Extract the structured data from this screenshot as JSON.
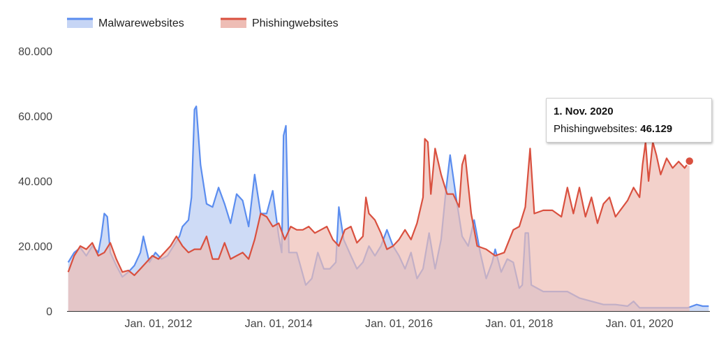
{
  "chart_data": {
    "type": "area",
    "y_ticks": [
      "0",
      "20.000",
      "40.000",
      "60.000",
      "80.000"
    ],
    "y_tick_values": [
      0,
      20000,
      40000,
      60000,
      80000
    ],
    "ylim": [
      0,
      80000
    ],
    "x_ticks": [
      {
        "label": "Jan. 01, 2012",
        "value": 2012.0
      },
      {
        "label": "Jan. 01, 2014",
        "value": 2014.0
      },
      {
        "label": "Jan. 01, 2016",
        "value": 2016.0
      },
      {
        "label": "Jan. 01, 2018",
        "value": 2018.0
      },
      {
        "label": "Jan. 01, 2020",
        "value": 2020.0
      }
    ],
    "xlim": [
      2010.48,
      2021.17
    ],
    "legend_position": "top-left",
    "series": [
      {
        "name": "Malwarewebsites",
        "color": "#5b8def",
        "fill": "#c6d5f5",
        "points": [
          [
            2010.5,
            15000
          ],
          [
            2010.6,
            18000
          ],
          [
            2010.7,
            19500
          ],
          [
            2010.8,
            17000
          ],
          [
            2010.9,
            20000
          ],
          [
            2011.0,
            18000
          ],
          [
            2011.05,
            23000
          ],
          [
            2011.1,
            30000
          ],
          [
            2011.15,
            29000
          ],
          [
            2011.2,
            18000
          ],
          [
            2011.3,
            14000
          ],
          [
            2011.4,
            10500
          ],
          [
            2011.5,
            12000
          ],
          [
            2011.6,
            14000
          ],
          [
            2011.7,
            18000
          ],
          [
            2011.75,
            23000
          ],
          [
            2011.85,
            15000
          ],
          [
            2011.95,
            18000
          ],
          [
            2012.05,
            16000
          ],
          [
            2012.15,
            17000
          ],
          [
            2012.25,
            20000
          ],
          [
            2012.35,
            23000
          ],
          [
            2012.4,
            26000
          ],
          [
            2012.5,
            28000
          ],
          [
            2012.55,
            35000
          ],
          [
            2012.6,
            62000
          ],
          [
            2012.63,
            63000
          ],
          [
            2012.7,
            45000
          ],
          [
            2012.8,
            33000
          ],
          [
            2012.9,
            32000
          ],
          [
            2013.0,
            38000
          ],
          [
            2013.1,
            33000
          ],
          [
            2013.2,
            27000
          ],
          [
            2013.3,
            36000
          ],
          [
            2013.4,
            34000
          ],
          [
            2013.5,
            26000
          ],
          [
            2013.6,
            42000
          ],
          [
            2013.7,
            30000
          ],
          [
            2013.8,
            30000
          ],
          [
            2013.9,
            37000
          ],
          [
            2014.0,
            23000
          ],
          [
            2014.05,
            18000
          ],
          [
            2014.08,
            54000
          ],
          [
            2014.12,
            57000
          ],
          [
            2014.17,
            18000
          ],
          [
            2014.3,
            18000
          ],
          [
            2014.45,
            8000
          ],
          [
            2014.55,
            10000
          ],
          [
            2014.65,
            18000
          ],
          [
            2014.75,
            13000
          ],
          [
            2014.85,
            13000
          ],
          [
            2014.95,
            15000
          ],
          [
            2015.0,
            32000
          ],
          [
            2015.08,
            22000
          ],
          [
            2015.2,
            17000
          ],
          [
            2015.3,
            13000
          ],
          [
            2015.4,
            15000
          ],
          [
            2015.5,
            20000
          ],
          [
            2015.6,
            17000
          ],
          [
            2015.7,
            20000
          ],
          [
            2015.8,
            25000
          ],
          [
            2015.9,
            20000
          ],
          [
            2016.0,
            17000
          ],
          [
            2016.1,
            13000
          ],
          [
            2016.2,
            18000
          ],
          [
            2016.3,
            10000
          ],
          [
            2016.4,
            13000
          ],
          [
            2016.5,
            24000
          ],
          [
            2016.6,
            13000
          ],
          [
            2016.7,
            22000
          ],
          [
            2016.78,
            37000
          ],
          [
            2016.85,
            48000
          ],
          [
            2016.95,
            35000
          ],
          [
            2017.05,
            23000
          ],
          [
            2017.15,
            20000
          ],
          [
            2017.25,
            28000
          ],
          [
            2017.35,
            18000
          ],
          [
            2017.45,
            10000
          ],
          [
            2017.55,
            15000
          ],
          [
            2017.6,
            19000
          ],
          [
            2017.7,
            12000
          ],
          [
            2017.8,
            16000
          ],
          [
            2017.9,
            15000
          ],
          [
            2018.0,
            7000
          ],
          [
            2018.05,
            8000
          ],
          [
            2018.1,
            24000
          ],
          [
            2018.15,
            24000
          ],
          [
            2018.2,
            8000
          ],
          [
            2018.4,
            6000
          ],
          [
            2018.6,
            6000
          ],
          [
            2018.8,
            6000
          ],
          [
            2019.0,
            4000
          ],
          [
            2019.2,
            3000
          ],
          [
            2019.4,
            2000
          ],
          [
            2019.6,
            2000
          ],
          [
            2019.8,
            1500
          ],
          [
            2019.9,
            3000
          ],
          [
            2020.0,
            1000
          ],
          [
            2020.2,
            1000
          ],
          [
            2020.5,
            1000
          ],
          [
            2020.8,
            1000
          ],
          [
            2020.95,
            2000
          ],
          [
            2021.05,
            1500
          ],
          [
            2021.15,
            1500
          ]
        ]
      },
      {
        "name": "Phishingwebsites",
        "color": "#d9503f",
        "fill": "#eebdb5",
        "points": [
          [
            2010.5,
            12000
          ],
          [
            2010.6,
            17000
          ],
          [
            2010.7,
            20000
          ],
          [
            2010.8,
            19000
          ],
          [
            2010.9,
            21000
          ],
          [
            2011.0,
            17000
          ],
          [
            2011.1,
            18000
          ],
          [
            2011.2,
            21000
          ],
          [
            2011.3,
            16000
          ],
          [
            2011.4,
            12000
          ],
          [
            2011.5,
            12500
          ],
          [
            2011.6,
            11000
          ],
          [
            2011.7,
            13000
          ],
          [
            2011.8,
            15000
          ],
          [
            2011.9,
            17000
          ],
          [
            2012.0,
            16000
          ],
          [
            2012.1,
            18000
          ],
          [
            2012.2,
            20000
          ],
          [
            2012.3,
            23000
          ],
          [
            2012.4,
            20000
          ],
          [
            2012.5,
            18000
          ],
          [
            2012.6,
            19000
          ],
          [
            2012.7,
            19000
          ],
          [
            2012.8,
            23000
          ],
          [
            2012.9,
            16000
          ],
          [
            2013.0,
            16000
          ],
          [
            2013.1,
            21000
          ],
          [
            2013.2,
            16000
          ],
          [
            2013.3,
            17000
          ],
          [
            2013.4,
            18000
          ],
          [
            2013.5,
            16000
          ],
          [
            2013.6,
            22000
          ],
          [
            2013.7,
            30000
          ],
          [
            2013.8,
            29000
          ],
          [
            2013.9,
            26000
          ],
          [
            2014.0,
            27000
          ],
          [
            2014.1,
            22000
          ],
          [
            2014.2,
            26000
          ],
          [
            2014.3,
            25000
          ],
          [
            2014.4,
            25000
          ],
          [
            2014.5,
            26000
          ],
          [
            2014.6,
            24000
          ],
          [
            2014.7,
            25000
          ],
          [
            2014.8,
            26000
          ],
          [
            2014.9,
            22000
          ],
          [
            2015.0,
            20000
          ],
          [
            2015.1,
            25000
          ],
          [
            2015.2,
            26000
          ],
          [
            2015.3,
            21000
          ],
          [
            2015.4,
            23000
          ],
          [
            2015.45,
            35000
          ],
          [
            2015.5,
            30000
          ],
          [
            2015.6,
            28000
          ],
          [
            2015.7,
            24000
          ],
          [
            2015.8,
            19000
          ],
          [
            2015.9,
            20000
          ],
          [
            2016.0,
            22000
          ],
          [
            2016.1,
            25000
          ],
          [
            2016.2,
            22000
          ],
          [
            2016.3,
            27000
          ],
          [
            2016.4,
            35000
          ],
          [
            2016.43,
            53000
          ],
          [
            2016.48,
            52000
          ],
          [
            2016.53,
            36000
          ],
          [
            2016.6,
            50000
          ],
          [
            2016.7,
            42000
          ],
          [
            2016.8,
            36000
          ],
          [
            2016.9,
            36000
          ],
          [
            2017.0,
            32000
          ],
          [
            2017.05,
            45000
          ],
          [
            2017.1,
            48000
          ],
          [
            2017.2,
            30000
          ],
          [
            2017.3,
            20000
          ],
          [
            2017.45,
            19000
          ],
          [
            2017.6,
            17000
          ],
          [
            2017.75,
            18000
          ],
          [
            2017.9,
            25000
          ],
          [
            2018.0,
            26000
          ],
          [
            2018.1,
            32000
          ],
          [
            2018.18,
            50000
          ],
          [
            2018.25,
            30000
          ],
          [
            2018.4,
            31000
          ],
          [
            2018.55,
            31000
          ],
          [
            2018.7,
            29000
          ],
          [
            2018.8,
            38000
          ],
          [
            2018.9,
            30000
          ],
          [
            2019.0,
            38000
          ],
          [
            2019.1,
            29000
          ],
          [
            2019.2,
            35000
          ],
          [
            2019.3,
            27000
          ],
          [
            2019.4,
            33000
          ],
          [
            2019.5,
            35000
          ],
          [
            2019.6,
            29000
          ],
          [
            2019.8,
            34000
          ],
          [
            2019.9,
            38000
          ],
          [
            2020.0,
            35000
          ],
          [
            2020.05,
            45000
          ],
          [
            2020.1,
            52000
          ],
          [
            2020.15,
            40000
          ],
          [
            2020.22,
            52000
          ],
          [
            2020.28,
            48000
          ],
          [
            2020.35,
            42000
          ],
          [
            2020.45,
            47000
          ],
          [
            2020.55,
            44000
          ],
          [
            2020.65,
            46000
          ],
          [
            2020.75,
            44000
          ],
          [
            2020.83,
            46129
          ]
        ]
      }
    ],
    "tooltip": {
      "date": "1. Nov. 2020",
      "series": "Phishingwebsites:",
      "value": "46.129",
      "point": [
        2020.83,
        46129
      ]
    }
  }
}
